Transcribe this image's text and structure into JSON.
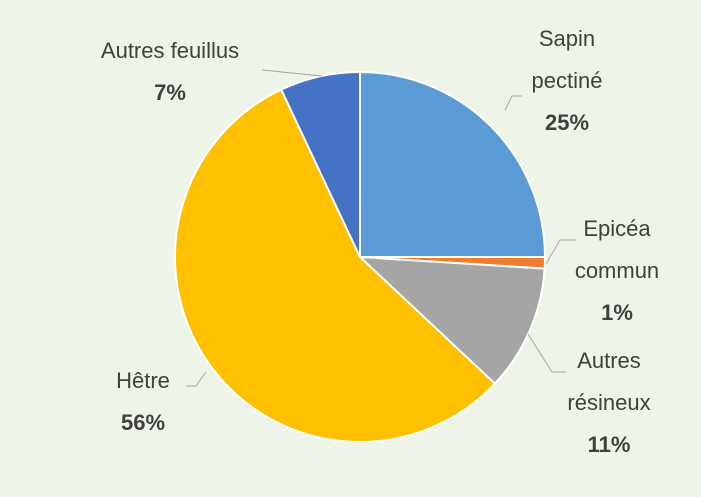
{
  "chart_data": {
    "type": "pie",
    "categories": [
      "Sapin pectiné",
      "Epicéa commun",
      "Autres résineux",
      "Hêtre",
      "Autres feuillus"
    ],
    "values": [
      25,
      1,
      11,
      56,
      7
    ],
    "value_labels": [
      "25%",
      "1%",
      "11%",
      "56%",
      "7%"
    ],
    "colors": [
      "#5b9bd5",
      "#ed7d31",
      "#a5a5a5",
      "#ffc000",
      "#4472c4"
    ]
  }
}
